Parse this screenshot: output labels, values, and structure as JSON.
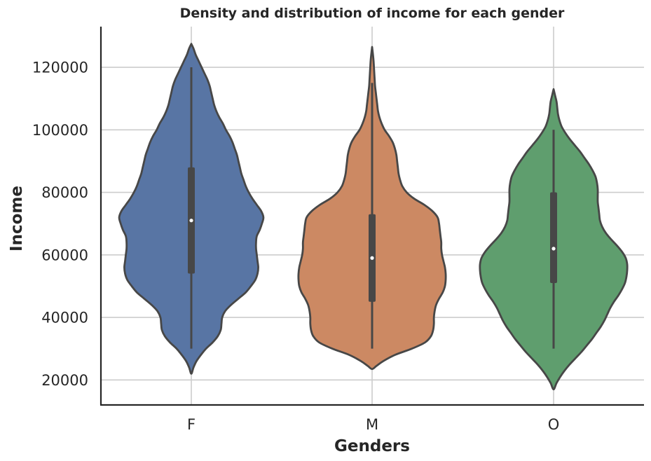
{
  "chart_data": {
    "type": "violin",
    "title": "Density and distribution of income for each gender",
    "xlabel": "Genders",
    "ylabel": "Income",
    "categories": [
      "F",
      "M",
      "O"
    ],
    "ylim": [
      12000,
      133000
    ],
    "yticks": [
      20000,
      40000,
      60000,
      80000,
      100000,
      120000
    ],
    "ytick_labels": [
      "20000",
      "40000",
      "60000",
      "80000",
      "100000",
      "120000"
    ],
    "grid": true,
    "colors": [
      "#5875a4",
      "#cc8963",
      "#5f9e6e"
    ],
    "outline_color": "#474747",
    "series": [
      {
        "category": "F",
        "min": 30000,
        "q1": 54000,
        "median": 71000,
        "q3": 88000,
        "max": 120000,
        "density": [
          [
            22000,
            0
          ],
          [
            24000,
            0.03
          ],
          [
            26000,
            0.07
          ],
          [
            28000,
            0.13
          ],
          [
            30000,
            0.2
          ],
          [
            32000,
            0.29
          ],
          [
            34000,
            0.36
          ],
          [
            36000,
            0.4
          ],
          [
            38000,
            0.41
          ],
          [
            40000,
            0.42
          ],
          [
            42000,
            0.46
          ],
          [
            44000,
            0.54
          ],
          [
            46000,
            0.64
          ],
          [
            48000,
            0.74
          ],
          [
            50000,
            0.81
          ],
          [
            52000,
            0.87
          ],
          [
            54000,
            0.9
          ],
          [
            56000,
            0.91
          ],
          [
            58000,
            0.9
          ],
          [
            60000,
            0.89
          ],
          [
            62000,
            0.88
          ],
          [
            64000,
            0.88
          ],
          [
            66000,
            0.89
          ],
          [
            68000,
            0.93
          ],
          [
            70000,
            0.96
          ],
          [
            72000,
            0.98
          ],
          [
            74000,
            0.95
          ],
          [
            76000,
            0.89
          ],
          [
            78000,
            0.83
          ],
          [
            80000,
            0.78
          ],
          [
            82000,
            0.74
          ],
          [
            84000,
            0.71
          ],
          [
            86000,
            0.68
          ],
          [
            88000,
            0.66
          ],
          [
            90000,
            0.64
          ],
          [
            92000,
            0.62
          ],
          [
            94000,
            0.59
          ],
          [
            96000,
            0.56
          ],
          [
            98000,
            0.52
          ],
          [
            100000,
            0.47
          ],
          [
            102000,
            0.43
          ],
          [
            104000,
            0.38
          ],
          [
            106000,
            0.34
          ],
          [
            108000,
            0.31
          ],
          [
            110000,
            0.29
          ],
          [
            112000,
            0.27
          ],
          [
            114000,
            0.25
          ],
          [
            116000,
            0.22
          ],
          [
            118000,
            0.18
          ],
          [
            120000,
            0.14
          ],
          [
            122000,
            0.1
          ],
          [
            124000,
            0.06
          ],
          [
            126000,
            0.03
          ],
          [
            127500,
            0
          ]
        ]
      },
      {
        "category": "M",
        "min": 30000,
        "q1": 45000,
        "median": 59000,
        "q3": 73000,
        "max": 115000,
        "density": [
          [
            23500,
            0
          ],
          [
            24500,
            0.06
          ],
          [
            26000,
            0.15
          ],
          [
            28000,
            0.31
          ],
          [
            30000,
            0.54
          ],
          [
            32000,
            0.72
          ],
          [
            34000,
            0.8
          ],
          [
            36000,
            0.83
          ],
          [
            38000,
            0.84
          ],
          [
            40000,
            0.84
          ],
          [
            42000,
            0.85
          ],
          [
            44000,
            0.87
          ],
          [
            46000,
            0.91
          ],
          [
            48000,
            0.96
          ],
          [
            50000,
            0.99
          ],
          [
            52000,
            1.0
          ],
          [
            54000,
            1.0
          ],
          [
            56000,
            0.99
          ],
          [
            58000,
            0.97
          ],
          [
            60000,
            0.95
          ],
          [
            62000,
            0.94
          ],
          [
            64000,
            0.94
          ],
          [
            66000,
            0.93
          ],
          [
            68000,
            0.92
          ],
          [
            70000,
            0.91
          ],
          [
            72000,
            0.89
          ],
          [
            74000,
            0.82
          ],
          [
            76000,
            0.71
          ],
          [
            78000,
            0.57
          ],
          [
            80000,
            0.47
          ],
          [
            82000,
            0.41
          ],
          [
            84000,
            0.38
          ],
          [
            86000,
            0.36
          ],
          [
            88000,
            0.35
          ],
          [
            90000,
            0.34
          ],
          [
            92000,
            0.33
          ],
          [
            94000,
            0.31
          ],
          [
            96000,
            0.28
          ],
          [
            98000,
            0.23
          ],
          [
            100000,
            0.17
          ],
          [
            102000,
            0.13
          ],
          [
            104000,
            0.1
          ],
          [
            106000,
            0.08
          ],
          [
            108000,
            0.07
          ],
          [
            110000,
            0.06
          ],
          [
            112000,
            0.05
          ],
          [
            114000,
            0.04
          ],
          [
            116000,
            0.035
          ],
          [
            118000,
            0.03
          ],
          [
            120000,
            0.025
          ],
          [
            122000,
            0.02
          ],
          [
            124000,
            0.012
          ],
          [
            126500,
            0
          ]
        ]
      },
      {
        "category": "O",
        "min": 30000,
        "q1": 51000,
        "median": 62000,
        "q3": 80000,
        "max": 100000,
        "density": [
          [
            17000,
            0
          ],
          [
            19000,
            0.04
          ],
          [
            21000,
            0.09
          ],
          [
            23000,
            0.15
          ],
          [
            25000,
            0.22
          ],
          [
            27000,
            0.3
          ],
          [
            29000,
            0.38
          ],
          [
            31000,
            0.45
          ],
          [
            33000,
            0.52
          ],
          [
            35000,
            0.58
          ],
          [
            37000,
            0.64
          ],
          [
            39000,
            0.69
          ],
          [
            41000,
            0.73
          ],
          [
            43000,
            0.77
          ],
          [
            45000,
            0.82
          ],
          [
            47000,
            0.88
          ],
          [
            49000,
            0.93
          ],
          [
            51000,
            0.97
          ],
          [
            53000,
            0.99
          ],
          [
            55000,
            1.0
          ],
          [
            57000,
            1.0
          ],
          [
            59000,
            0.98
          ],
          [
            61000,
            0.93
          ],
          [
            63000,
            0.86
          ],
          [
            65000,
            0.78
          ],
          [
            67000,
            0.71
          ],
          [
            69000,
            0.66
          ],
          [
            71000,
            0.63
          ],
          [
            73000,
            0.62
          ],
          [
            75000,
            0.61
          ],
          [
            77000,
            0.6
          ],
          [
            79000,
            0.6
          ],
          [
            81000,
            0.6
          ],
          [
            83000,
            0.59
          ],
          [
            85000,
            0.57
          ],
          [
            87000,
            0.53
          ],
          [
            89000,
            0.48
          ],
          [
            91000,
            0.42
          ],
          [
            93000,
            0.36
          ],
          [
            95000,
            0.29
          ],
          [
            97000,
            0.22
          ],
          [
            99000,
            0.16
          ],
          [
            101000,
            0.11
          ],
          [
            103000,
            0.08
          ],
          [
            105000,
            0.06
          ],
          [
            107000,
            0.05
          ],
          [
            109000,
            0.04
          ],
          [
            111000,
            0.02
          ],
          [
            113000,
            0
          ]
        ]
      }
    ]
  }
}
